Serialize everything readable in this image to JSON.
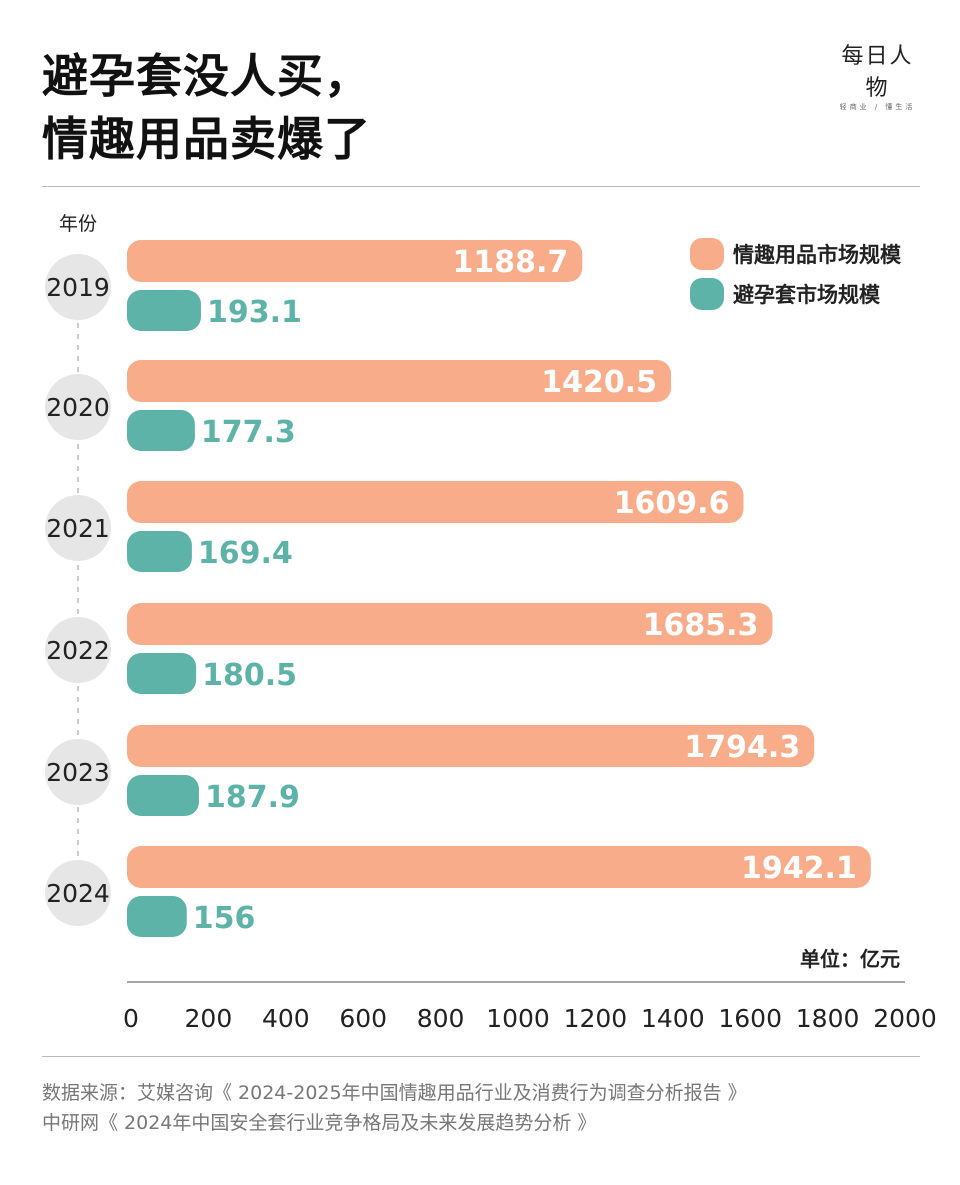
{
  "header": {
    "title_line1": "避孕套没人买，",
    "title_line2": "情趣用品卖爆了",
    "logo": "每日人物",
    "logo_sub": "轻商业 / 懂生活"
  },
  "footer": {
    "line1": "数据来源：艾媒咨询《 2024-2025年中国情趣用品行业及消费行为调查分析报告 》",
    "line2": "中研网《 2024年中国安全套行业竞争格局及未来发展趋势分析 》"
  },
  "chart_data": {
    "type": "bar",
    "orientation": "horizontal",
    "title": "",
    "ylabel": "年份",
    "unit": "单位：亿元",
    "categories": [
      "2019",
      "2020",
      "2021",
      "2022",
      "2023",
      "2024"
    ],
    "series": [
      {
        "name": "情趣用品市场规模",
        "color": "#F9AC8A",
        "values": [
          1188.7,
          1420.5,
          1609.6,
          1685.3,
          1794.3,
          1942.1
        ]
      },
      {
        "name": "避孕套市场规模",
        "color": "#5DB3A8",
        "values": [
          193.1,
          177.3,
          169.4,
          180.5,
          187.9,
          156
        ]
      }
    ],
    "xlim": [
      0,
      2000
    ],
    "xticks": [
      "0",
      "200",
      "400",
      "600",
      "800",
      "1000",
      "1200",
      "1400",
      "1600",
      "1800",
      "2000"
    ],
    "legend": "top-right",
    "grid": false
  }
}
